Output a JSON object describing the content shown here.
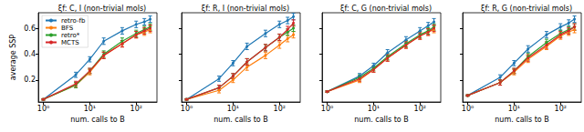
{
  "chart_data": [
    {
      "type": "line",
      "title": "ξf: C, I (non-trivial mols)",
      "x_label": "num. calls to B",
      "y_label": "average SSP",
      "log": "x",
      "grid": false,
      "legend": "upper left",
      "marker": "circle",
      "xlim": [
        0.78,
        280
      ],
      "ylim": [
        0.03,
        0.72
      ],
      "xticks": [
        {
          "value": 1,
          "label": "10⁰"
        },
        {
          "value": 10,
          "label": "10¹"
        },
        {
          "value": 100,
          "label": "10²"
        }
      ],
      "yticks": [
        0.2,
        0.4,
        0.6
      ],
      "x": [
        1,
        5,
        10,
        20,
        50,
        100,
        150,
        200
      ],
      "series": [
        {
          "name": "retro-fb",
          "color": "#1f77b4",
          "values": [
            0.05,
            0.24,
            0.36,
            0.5,
            0.58,
            0.63,
            0.65,
            0.67
          ],
          "errors": [
            0.005,
            0.02,
            0.02,
            0.025,
            0.025,
            0.025,
            0.025,
            0.025
          ]
        },
        {
          "name": "BFS",
          "color": "#ff7f0e",
          "values": [
            0.05,
            0.16,
            0.26,
            0.39,
            0.48,
            0.55,
            0.57,
            0.59
          ],
          "errors": [
            0.005,
            0.02,
            0.02,
            0.025,
            0.025,
            0.025,
            0.025,
            0.025
          ]
        },
        {
          "name": "retro*",
          "color": "#2ca02c",
          "values": [
            0.05,
            0.16,
            0.27,
            0.4,
            0.5,
            0.56,
            0.59,
            0.61
          ],
          "errors": [
            0.005,
            0.02,
            0.02,
            0.025,
            0.025,
            0.025,
            0.025,
            0.025
          ]
        },
        {
          "name": "MCTS",
          "color": "#d62728",
          "values": [
            0.05,
            0.17,
            0.27,
            0.39,
            0.48,
            0.55,
            0.58,
            0.6
          ],
          "errors": [
            0.005,
            0.02,
            0.02,
            0.025,
            0.025,
            0.025,
            0.025,
            0.025
          ]
        }
      ]
    },
    {
      "type": "line",
      "title": "ξf: R, I (non-trivial mols)",
      "x_label": "num. calls to B",
      "log": "x",
      "grid": false,
      "tick_labels": "x",
      "marker": "circle",
      "xlim": [
        0.78,
        280
      ],
      "ylim": [
        0.03,
        0.72
      ],
      "xticks": [
        {
          "value": 1,
          "label": "10⁰"
        },
        {
          "value": 10,
          "label": "10¹"
        },
        {
          "value": 100,
          "label": "10²"
        }
      ],
      "yticks": [
        0.2,
        0.4,
        0.6
      ],
      "x": [
        1,
        5,
        10,
        20,
        50,
        100,
        150,
        200
      ],
      "series": [
        {
          "name": "retro-fb",
          "color": "#1f77b4",
          "values": [
            0.05,
            0.21,
            0.33,
            0.46,
            0.56,
            0.63,
            0.66,
            0.69
          ],
          "errors": [
            0.005,
            0.02,
            0.02,
            0.025,
            0.025,
            0.025,
            0.025,
            0.025
          ]
        },
        {
          "name": "BFS",
          "color": "#ff7f0e",
          "values": [
            0.05,
            0.12,
            0.2,
            0.3,
            0.39,
            0.47,
            0.52,
            0.55
          ],
          "errors": [
            0.005,
            0.02,
            0.02,
            0.025,
            0.025,
            0.025,
            0.025,
            0.025
          ]
        },
        {
          "name": "retro*",
          "color": "#2ca02c",
          "values": [
            0.05,
            0.14,
            0.23,
            0.34,
            0.45,
            0.53,
            0.57,
            0.6
          ],
          "errors": [
            0.005,
            0.02,
            0.02,
            0.025,
            0.025,
            0.025,
            0.025,
            0.025
          ]
        },
        {
          "name": "MCTS",
          "color": "#d62728",
          "values": [
            0.05,
            0.14,
            0.23,
            0.34,
            0.45,
            0.53,
            0.59,
            0.64
          ],
          "errors": [
            0.005,
            0.02,
            0.02,
            0.025,
            0.025,
            0.025,
            0.025,
            0.025
          ]
        }
      ]
    },
    {
      "type": "line",
      "title": "ξf: C, G (non-trivial mols)",
      "x_label": "num. calls to B",
      "log": "x",
      "grid": false,
      "tick_labels": "x",
      "marker": "circle",
      "xlim": [
        0.78,
        280
      ],
      "ylim": [
        0.03,
        0.72
      ],
      "xticks": [
        {
          "value": 1,
          "label": "10⁰"
        },
        {
          "value": 10,
          "label": "10¹"
        },
        {
          "value": 100,
          "label": "10²"
        }
      ],
      "yticks": [
        0.2,
        0.4,
        0.6
      ],
      "x": [
        1,
        5,
        10,
        20,
        50,
        100,
        150,
        200
      ],
      "series": [
        {
          "name": "retro-fb",
          "color": "#1f77b4",
          "values": [
            0.11,
            0.23,
            0.31,
            0.41,
            0.51,
            0.58,
            0.62,
            0.65
          ],
          "errors": [
            0.005,
            0.02,
            0.02,
            0.025,
            0.025,
            0.025,
            0.025,
            0.025
          ]
        },
        {
          "name": "BFS",
          "color": "#ff7f0e",
          "values": [
            0.11,
            0.2,
            0.28,
            0.37,
            0.47,
            0.54,
            0.57,
            0.59
          ],
          "errors": [
            0.005,
            0.02,
            0.02,
            0.025,
            0.025,
            0.025,
            0.025,
            0.025
          ]
        },
        {
          "name": "retro*",
          "color": "#2ca02c",
          "values": [
            0.11,
            0.22,
            0.29,
            0.38,
            0.48,
            0.55,
            0.58,
            0.61
          ],
          "errors": [
            0.005,
            0.02,
            0.02,
            0.025,
            0.025,
            0.025,
            0.025,
            0.025
          ]
        },
        {
          "name": "MCTS",
          "color": "#d62728",
          "values": [
            0.11,
            0.21,
            0.28,
            0.37,
            0.47,
            0.54,
            0.57,
            0.6
          ],
          "errors": [
            0.005,
            0.02,
            0.02,
            0.025,
            0.025,
            0.025,
            0.025,
            0.025
          ]
        }
      ]
    },
    {
      "type": "line",
      "title": "ξf: R, G (non-trivial mols)",
      "x_label": "num. calls to B",
      "log": "x",
      "grid": false,
      "tick_labels": "x",
      "marker": "circle",
      "xlim": [
        0.78,
        280
      ],
      "ylim": [
        0.03,
        0.72
      ],
      "xticks": [
        {
          "value": 1,
          "label": "10⁰"
        },
        {
          "value": 10,
          "label": "10¹"
        },
        {
          "value": 100,
          "label": "10²"
        }
      ],
      "yticks": [
        0.2,
        0.4,
        0.6
      ],
      "x": [
        1,
        5,
        10,
        20,
        50,
        100,
        150,
        200
      ],
      "series": [
        {
          "name": "retro-fb",
          "color": "#1f77b4",
          "values": [
            0.08,
            0.22,
            0.33,
            0.44,
            0.55,
            0.61,
            0.64,
            0.67
          ],
          "errors": [
            0.005,
            0.02,
            0.02,
            0.025,
            0.025,
            0.025,
            0.025,
            0.025
          ]
        },
        {
          "name": "BFS",
          "color": "#ff7f0e",
          "values": [
            0.08,
            0.18,
            0.26,
            0.36,
            0.46,
            0.54,
            0.57,
            0.59
          ],
          "errors": [
            0.005,
            0.02,
            0.02,
            0.025,
            0.025,
            0.025,
            0.025,
            0.025
          ]
        },
        {
          "name": "retro*",
          "color": "#2ca02c",
          "values": [
            0.08,
            0.18,
            0.27,
            0.38,
            0.49,
            0.56,
            0.59,
            0.61
          ],
          "errors": [
            0.005,
            0.02,
            0.02,
            0.025,
            0.025,
            0.025,
            0.025,
            0.025
          ]
        },
        {
          "name": "MCTS",
          "color": "#d62728",
          "values": [
            0.08,
            0.18,
            0.27,
            0.37,
            0.47,
            0.55,
            0.58,
            0.61
          ],
          "errors": [
            0.005,
            0.02,
            0.02,
            0.025,
            0.025,
            0.025,
            0.025,
            0.025
          ]
        }
      ]
    }
  ]
}
